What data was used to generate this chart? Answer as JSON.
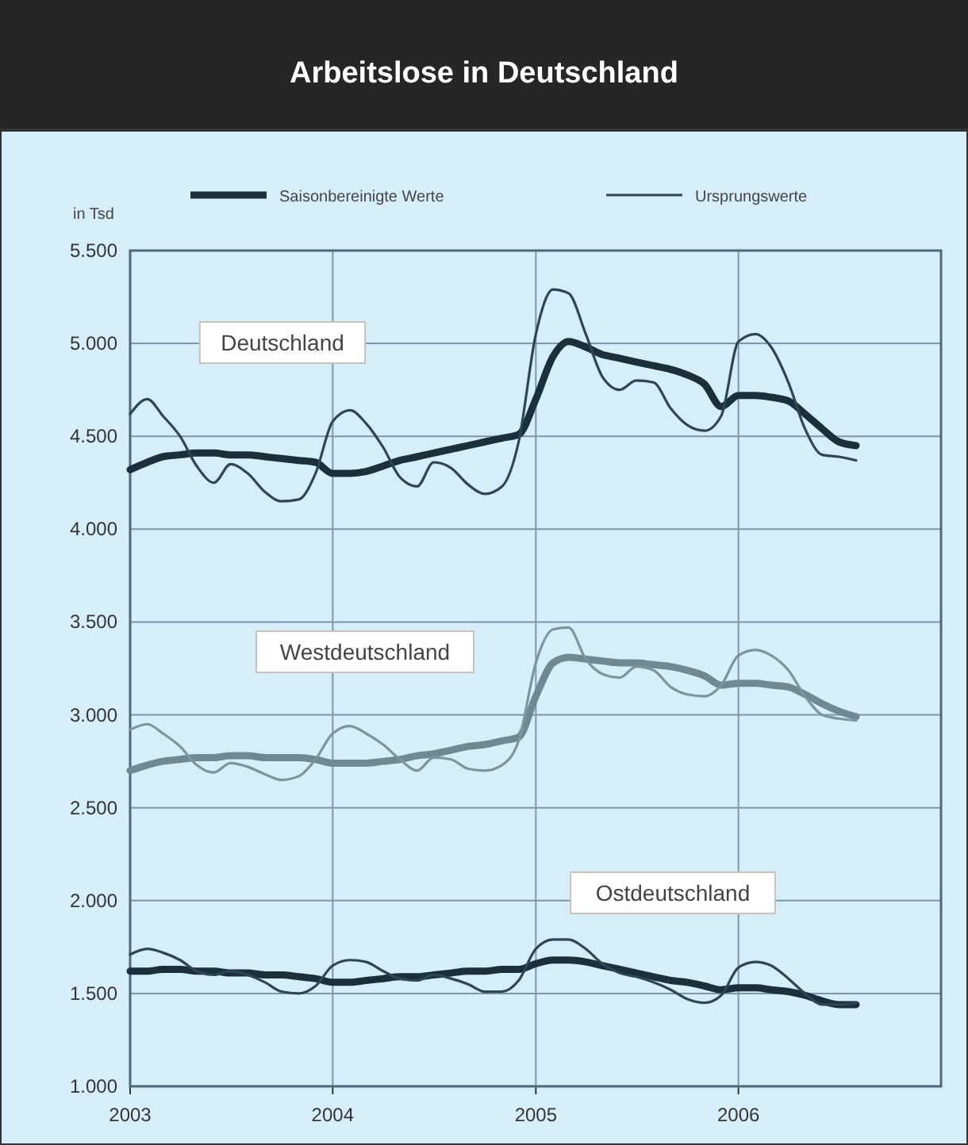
{
  "chart_data": {
    "type": "line",
    "title": "Arbeitslose in Deutschland",
    "ylabel": "in Tsd",
    "x": [
      "2003-01",
      "2003-02",
      "2003-03",
      "2003-04",
      "2003-05",
      "2003-06",
      "2003-07",
      "2003-08",
      "2003-09",
      "2003-10",
      "2003-11",
      "2003-12",
      "2004-01",
      "2004-02",
      "2004-03",
      "2004-04",
      "2004-05",
      "2004-06",
      "2004-07",
      "2004-08",
      "2004-09",
      "2004-10",
      "2004-11",
      "2004-12",
      "2005-01",
      "2005-02",
      "2005-03",
      "2005-04",
      "2005-05",
      "2005-06",
      "2005-07",
      "2005-08",
      "2005-09",
      "2005-10",
      "2005-11",
      "2005-12",
      "2006-01",
      "2006-02",
      "2006-03",
      "2006-04",
      "2006-05",
      "2006-06",
      "2006-07",
      "2006-08"
    ],
    "series": [
      {
        "name": "Saisonbereinigte Werte",
        "color": "#1b2f3d",
        "values": [
          4320,
          4360,
          4390,
          4400,
          4410,
          4410,
          4400,
          4400,
          4390,
          4380,
          4370,
          4360,
          4300,
          4300,
          4310,
          4340,
          4370,
          4390,
          4410,
          4430,
          4450,
          4470,
          4490,
          4510,
          4700,
          4930,
          5010,
          4980,
          4940,
          4920,
          4900,
          4880,
          4860,
          4830,
          4780,
          4660,
          4720,
          4720,
          4710,
          4690,
          4620,
          4540,
          4470,
          4450
        ]
      },
      {
        "name": "Ursprungswerte",
        "color": "#2c4654",
        "values": [
          4620,
          4700,
          4610,
          4500,
          4340,
          4250,
          4350,
          4300,
          4200,
          4150,
          4160,
          4300,
          4580,
          4640,
          4570,
          4440,
          4280,
          4230,
          4360,
          4330,
          4240,
          4190,
          4230,
          4470,
          5050,
          5290,
          5270,
          5050,
          4820,
          4750,
          4800,
          4790,
          4650,
          4560,
          4530,
          4610,
          5010,
          5050,
          4980,
          4790,
          4540,
          4400,
          4390,
          4370
        ]
      },
      {
        "color": "#6e8894",
        "values": [
          2700,
          2730,
          2750,
          2760,
          2770,
          2770,
          2780,
          2780,
          2770,
          2770,
          2770,
          2760,
          2740,
          2740,
          2740,
          2750,
          2760,
          2780,
          2790,
          2810,
          2830,
          2840,
          2860,
          2880,
          3100,
          3280,
          3310,
          3300,
          3290,
          3280,
          3280,
          3270,
          3260,
          3240,
          3210,
          3160,
          3170,
          3170,
          3160,
          3150,
          3110,
          3060,
          3020,
          2990
        ]
      },
      {
        "color": "#7b949f",
        "values": [
          2920,
          2950,
          2900,
          2830,
          2730,
          2690,
          2740,
          2720,
          2680,
          2650,
          2670,
          2760,
          2900,
          2940,
          2900,
          2840,
          2760,
          2700,
          2770,
          2760,
          2710,
          2700,
          2730,
          2860,
          3280,
          3460,
          3470,
          3300,
          3220,
          3200,
          3260,
          3240,
          3150,
          3110,
          3100,
          3160,
          3320,
          3350,
          3320,
          3240,
          3100,
          3000,
          2980,
          2970
        ]
      },
      {
        "color": "#1b2f3d",
        "values": [
          1620,
          1620,
          1630,
          1630,
          1620,
          1620,
          1610,
          1610,
          1600,
          1600,
          1590,
          1580,
          1560,
          1560,
          1570,
          1580,
          1590,
          1590,
          1600,
          1610,
          1620,
          1620,
          1630,
          1630,
          1660,
          1680,
          1680,
          1670,
          1650,
          1630,
          1610,
          1590,
          1570,
          1560,
          1540,
          1520,
          1530,
          1530,
          1520,
          1510,
          1490,
          1460,
          1440,
          1440
        ]
      },
      {
        "color": "#2c4654",
        "values": [
          1710,
          1740,
          1720,
          1680,
          1620,
          1600,
          1620,
          1600,
          1560,
          1510,
          1500,
          1540,
          1650,
          1680,
          1670,
          1620,
          1580,
          1570,
          1600,
          1580,
          1550,
          1510,
          1510,
          1570,
          1740,
          1790,
          1790,
          1740,
          1660,
          1610,
          1590,
          1560,
          1520,
          1470,
          1450,
          1490,
          1640,
          1670,
          1650,
          1580,
          1500,
          1440,
          1440,
          1450
        ]
      }
    ],
    "xlim": [
      "2003-01",
      "2007-01"
    ],
    "xticks": [
      {
        "value": "2003-01",
        "label": "2003"
      },
      {
        "value": "2004-01",
        "label": "2004"
      },
      {
        "value": "2005-01",
        "label": "2005"
      },
      {
        "value": "2006-01",
        "label": "2006"
      }
    ],
    "ylim": [
      1000,
      5500
    ],
    "yticks": [
      {
        "value": 1000,
        "label": "1.000"
      },
      {
        "value": 1500,
        "label": "1.500"
      },
      {
        "value": 2000,
        "label": "2.000"
      },
      {
        "value": 2500,
        "label": "2.500"
      },
      {
        "value": 3000,
        "label": "3.000"
      },
      {
        "value": 3500,
        "label": "3.500"
      },
      {
        "value": 4000,
        "label": "4.000"
      },
      {
        "value": 4500,
        "label": "4.500"
      },
      {
        "value": 5000,
        "label": "5.000"
      },
      {
        "value": 5500,
        "label": "5.500"
      }
    ],
    "annotations": [
      "Deutschland",
      "Westdeutschland",
      "Ostdeutschland"
    ],
    "grid": true,
    "legend": "top",
    "marker": "none",
    "line_style": "solid"
  }
}
